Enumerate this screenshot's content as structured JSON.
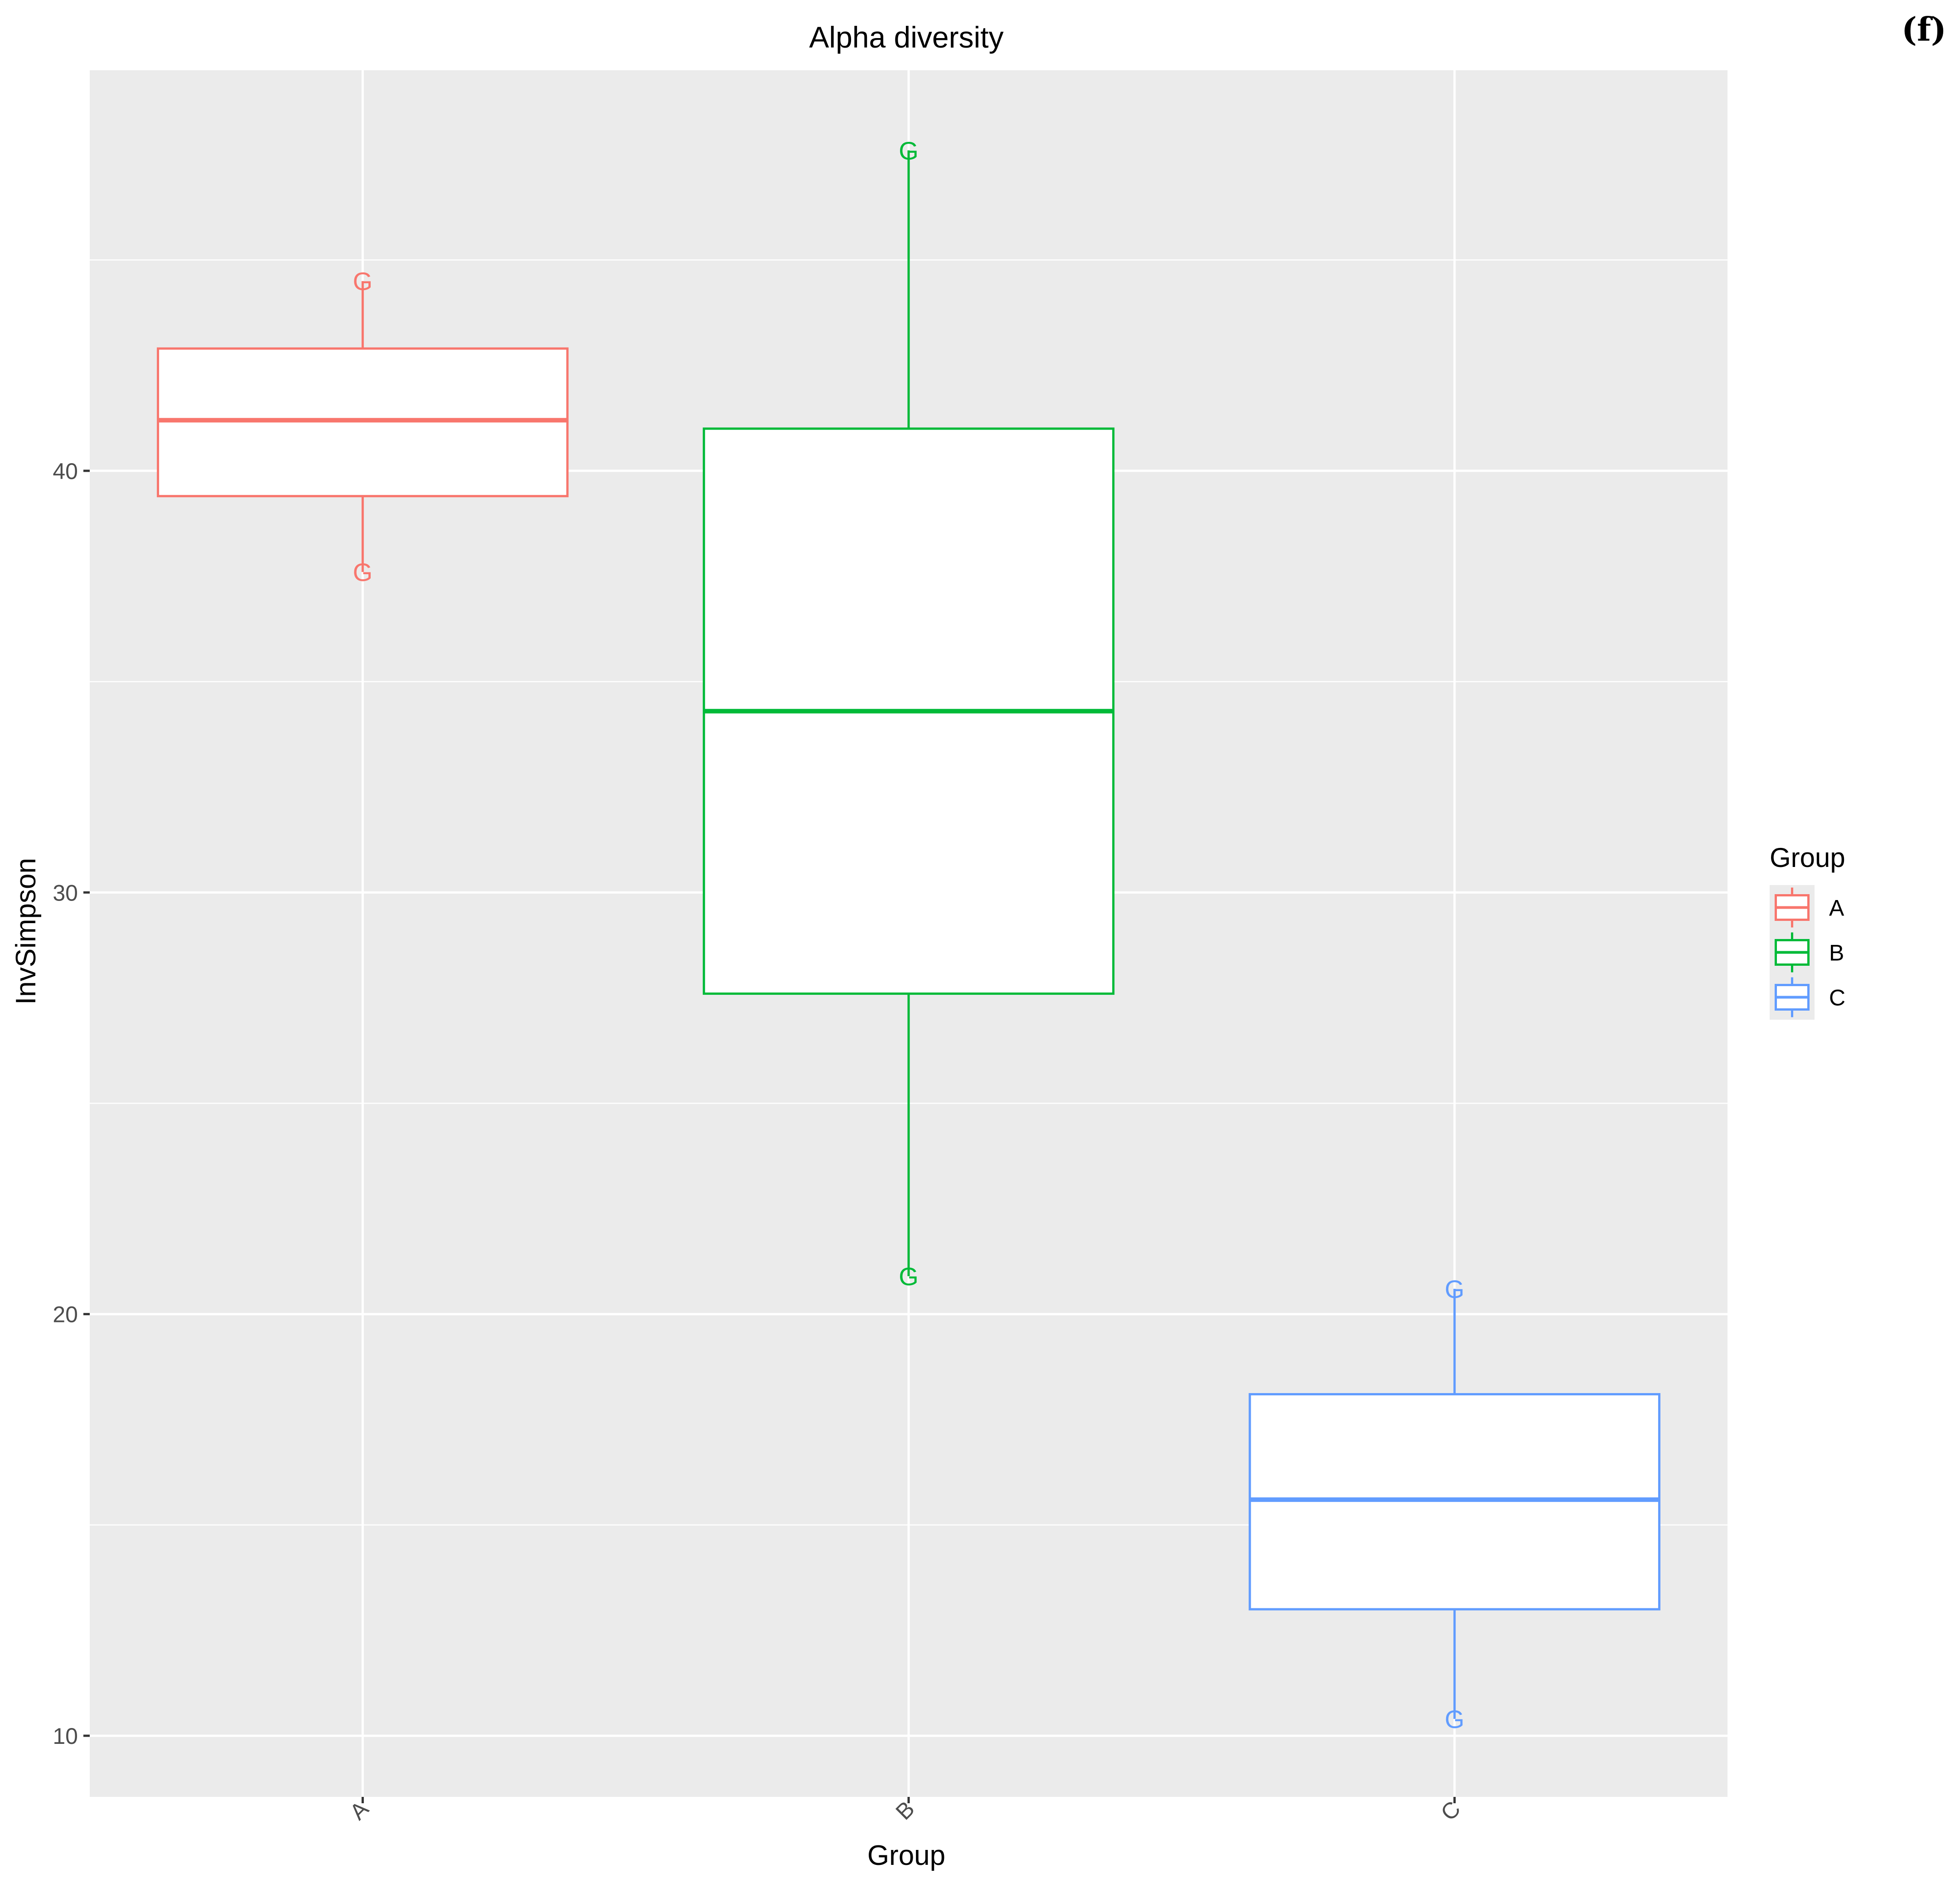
{
  "panel_label": "(f)",
  "chart_data": {
    "type": "boxplot",
    "title": "Alpha diversity",
    "xlabel": "Group",
    "ylabel": "InvSimpson",
    "categories": [
      "A",
      "B",
      "C"
    ],
    "ylim": [
      8.55,
      49.5
    ],
    "yticks": [
      10,
      20,
      30,
      40
    ],
    "ytick_labels": [
      "10",
      "20",
      "30",
      "40"
    ],
    "grid": true,
    "legend": {
      "title": "Group",
      "placement": "right",
      "entries": [
        "A",
        "B",
        "C"
      ]
    },
    "series": [
      {
        "category": "A",
        "color": "#F8766D",
        "whisker_low": 37.6,
        "q1": 39.4,
        "median": 41.2,
        "q3": 42.9,
        "whisker_high": 44.5,
        "points": [
          44.5,
          37.6
        ],
        "point_marker": "G"
      },
      {
        "category": "B",
        "color": "#00BA38",
        "whisker_low": 20.9,
        "q1": 27.6,
        "median": 34.3,
        "q3": 41.0,
        "whisker_high": 47.6,
        "points": [
          47.6,
          20.9
        ],
        "point_marker": "G"
      },
      {
        "category": "C",
        "color": "#619CFF",
        "whisker_low": 10.4,
        "q1": 13.0,
        "median": 15.6,
        "q3": 18.1,
        "whisker_high": 20.6,
        "points": [
          20.6,
          10.4
        ],
        "point_marker": "G"
      }
    ]
  }
}
